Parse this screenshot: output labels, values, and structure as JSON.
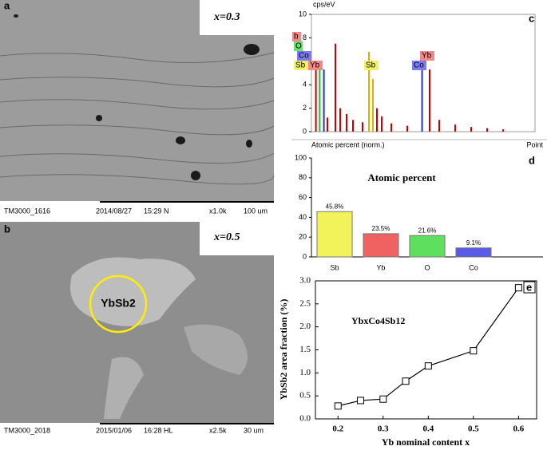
{
  "panels": [
    {
      "label": "a",
      "condition": "x=0.3",
      "info": [
        "TM3000_1616",
        "2014/08/27",
        "15:29 N",
        "x1.0k",
        "100 um"
      ]
    },
    {
      "label": "b",
      "condition": "x=0.5",
      "phase": "YbSb2",
      "info": [
        "TM3000_2018",
        "2015/01/06",
        "16:28 HL",
        "x2.5k",
        "30 um"
      ]
    }
  ],
  "chart_data": [
    {
      "type": "spectrum",
      "label": "c",
      "ylabel": "cps/eV",
      "x": [
        0.28,
        0.52,
        0.78,
        1.0,
        1.5,
        1.8,
        2.2,
        2.6,
        3.2,
        3.6,
        3.85,
        4.1,
        4.4,
        5.0,
        6.0,
        6.93,
        7.4,
        8.0,
        9.0,
        10.0,
        11.0,
        12.0
      ],
      "values": [
        5.3,
        5.3,
        5.3,
        1.2,
        7.5,
        2.0,
        1.5,
        1.0,
        0.8,
        6.8,
        4.5,
        2.0,
        1.3,
        0.7,
        0.5,
        5.3,
        5.3,
        1.0,
        0.6,
        0.4,
        0.3,
        0.2
      ],
      "colors": [
        "#cc0000",
        "#22bb22",
        "#2233cc",
        "#cc0000",
        "#cc0000",
        "#cc0000",
        "#cc0000",
        "#cc0000",
        "#cc0000",
        "#d8b400",
        "#d8b400",
        "#cc0000",
        "#cc0000",
        "#cc0000",
        "#cc0000",
        "#2233cc",
        "#cc0000",
        "#cc0000",
        "#cc0000",
        "#cc0000",
        "#cc0000",
        "#cc0000"
      ],
      "xlim": [
        0,
        14
      ],
      "ylim": [
        0,
        10
      ],
      "yticks": [
        0,
        2,
        4,
        6,
        8,
        10
      ],
      "peak_labels": [
        {
          "text": "b",
          "color": "#f08a8a"
        },
        {
          "text": "O",
          "color": "#6ee06e"
        },
        {
          "text": "Co",
          "color": "#7b7bf0"
        },
        {
          "text": "Sb",
          "color": "#f2f26a"
        },
        {
          "text": "Yb",
          "color": "#f08a8a"
        },
        {
          "text": "Sb",
          "color": "#f2f26a"
        },
        {
          "text": "Co",
          "color": "#7b7bf0"
        },
        {
          "text": "Yb",
          "color": "#f08a8a"
        }
      ]
    },
    {
      "type": "bar",
      "label": "d",
      "header": "Atomic percent (norm.)",
      "header_right": "Point",
      "title": "Atomic percent",
      "categories": [
        "Sb",
        "Yb",
        "O",
        "Co",
        null
      ],
      "values": [
        45.8,
        23.5,
        21.6,
        9.1,
        null
      ],
      "value_labels": [
        "45.8%",
        "23.5%",
        "21.6%",
        "9.1%",
        null
      ],
      "colors": [
        "#f2f25a",
        "#f06262",
        "#5ee05e",
        "#5a5ae8",
        null
      ],
      "ylim": [
        0,
        100
      ],
      "yticks": [
        0,
        20,
        40,
        60,
        80,
        100
      ]
    },
    {
      "type": "line",
      "label": "e",
      "annotation": "YbxCo4Sb12",
      "xlabel": "Yb nominal content x",
      "ylabel": "YbSb2 area fraction (%)",
      "x": [
        0.2,
        0.25,
        0.3,
        0.35,
        0.4,
        0.5,
        0.6
      ],
      "values": [
        0.28,
        0.4,
        0.43,
        0.82,
        1.15,
        1.48,
        2.85
      ],
      "color": "#000000",
      "xlim": [
        0.15,
        0.64
      ],
      "xticks": [
        0.2,
        0.3,
        0.4,
        0.5,
        0.6
      ],
      "ylim": [
        0,
        3
      ],
      "yticks": [
        {
          "value": 0,
          "label": "0.0"
        },
        0.5,
        {
          "value": 1,
          "label": "1.0"
        },
        1.5,
        {
          "value": 2,
          "label": "2.0"
        },
        2.5,
        {
          "value": 3,
          "label": "3.0"
        }
      ]
    }
  ]
}
